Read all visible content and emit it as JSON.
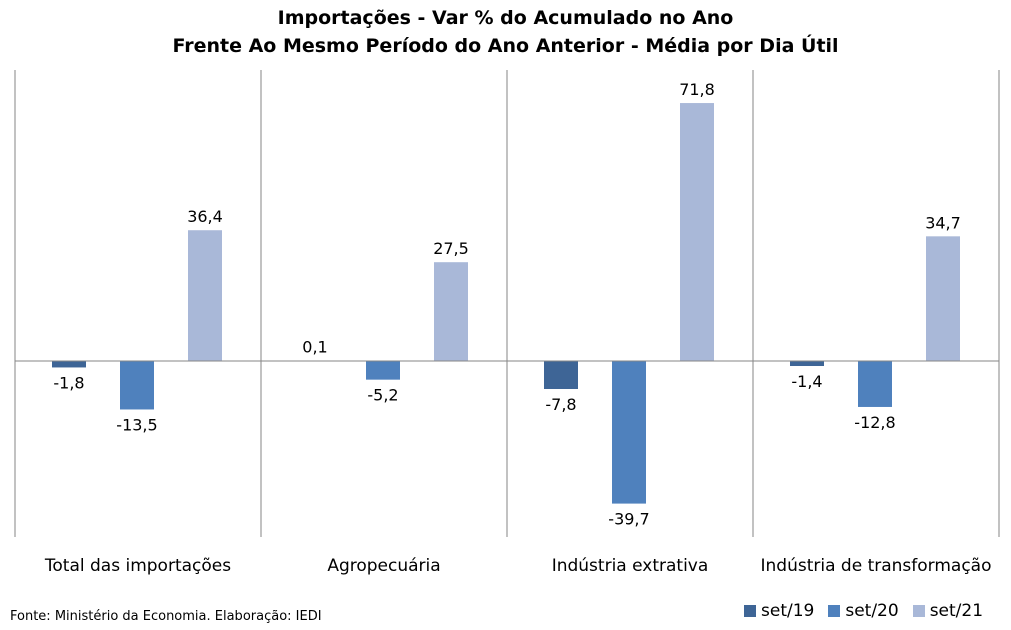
{
  "chart_data": {
    "type": "bar",
    "title": "Importações - Var % do Acumulado no Ano",
    "subtitle": "Frente Ao Mesmo Período do Ano Anterior - Média por Dia Útil",
    "categories": [
      "Total das importações",
      "Agropecuária",
      "Indústria extrativa",
      "Indústria de transformação"
    ],
    "series": [
      {
        "name": "set/19",
        "color": "#3e6596",
        "values": [
          -1.8,
          0.1,
          -7.8,
          -1.4
        ],
        "labels": [
          "-1,8",
          "0,1",
          "-7,8",
          "-1,4"
        ]
      },
      {
        "name": "set/20",
        "color": "#4f81bd",
        "values": [
          -13.5,
          -5.2,
          -39.7,
          -12.8
        ],
        "labels": [
          "-13,5",
          "-5,2",
          "-39,7",
          "-12,8"
        ]
      },
      {
        "name": "set/21",
        "color": "#a9b8d8",
        "values": [
          36.4,
          27.5,
          71.8,
          34.7
        ],
        "labels": [
          "36,4",
          "27,5",
          "71,8",
          "34,7"
        ]
      }
    ],
    "ylim": [
      -49,
      81
    ],
    "grid": false,
    "legend_position": "bottom-right"
  },
  "source": "Fonte: Ministério da Economia. Elaboração: IEDI"
}
